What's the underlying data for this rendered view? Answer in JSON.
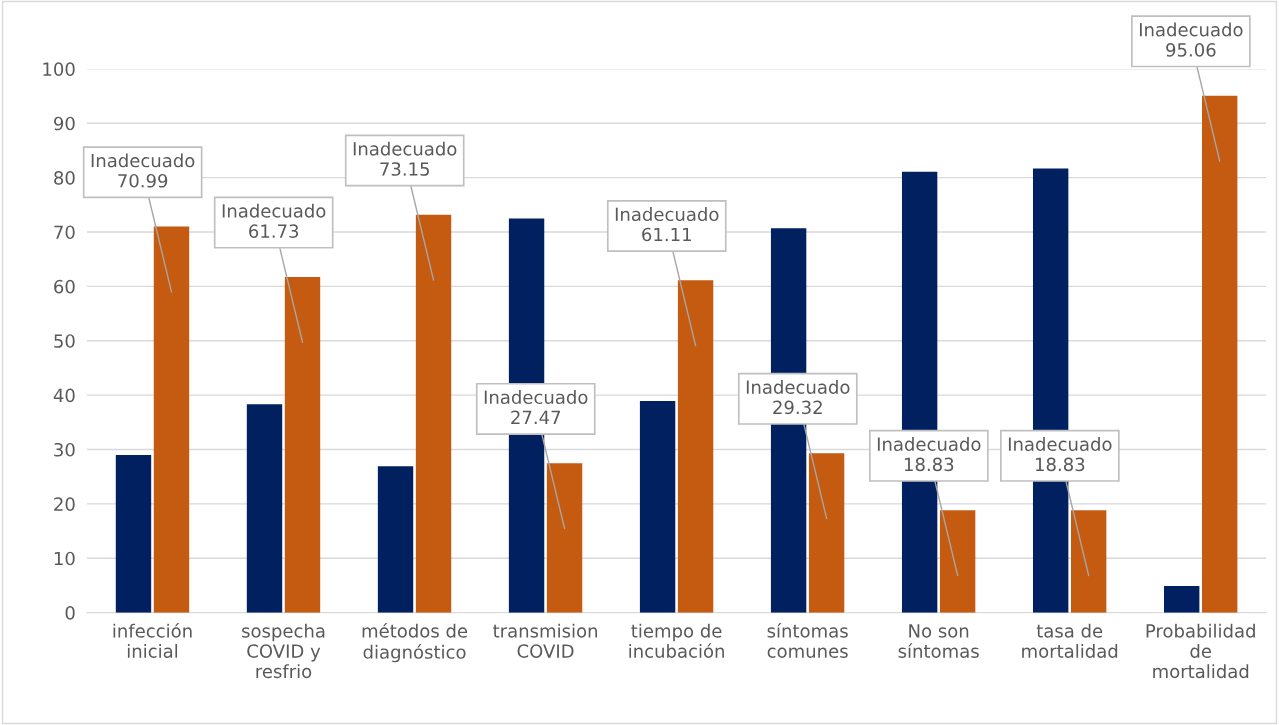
{
  "chart_data": {
    "type": "bar",
    "categories": [
      "infección\ninicial",
      "sospecha\nCOVID y\nresfrio",
      "métodos de\ndiagnóstico",
      "transmision\nCOVID",
      "tiempo de\nincubación",
      "síntomas\ncomunes",
      "No son\nsíntomas",
      "tasa de\nmortalidad",
      "Probabilidad\nde\nmortalidad"
    ],
    "series": [
      {
        "color": "#002060",
        "values": [
          29,
          38.3,
          26.9,
          72.5,
          38.9,
          70.7,
          81.1,
          81.7,
          4.9
        ]
      },
      {
        "color": "#c55a11",
        "values": [
          70.99,
          61.73,
          73.15,
          27.47,
          61.11,
          29.32,
          18.83,
          18.83,
          95.06
        ],
        "value_labels": [
          "Inadecuado\n70.99",
          "Inadecuado\n61.73",
          "Inadecuado\n73.15",
          "Inadecuado\n27.47",
          "Inadecuado\n61.11",
          "Inadecuado\n29.32",
          "Inadecuado\n18.83",
          "Inadecuado\n18.83",
          "Inadecuado\n95.06"
        ]
      }
    ],
    "ylim": [
      0,
      100
    ],
    "yticks": [
      0,
      10,
      20,
      30,
      40,
      50,
      60,
      70,
      80,
      90,
      100
    ],
    "grid": "y",
    "legend": false
  }
}
